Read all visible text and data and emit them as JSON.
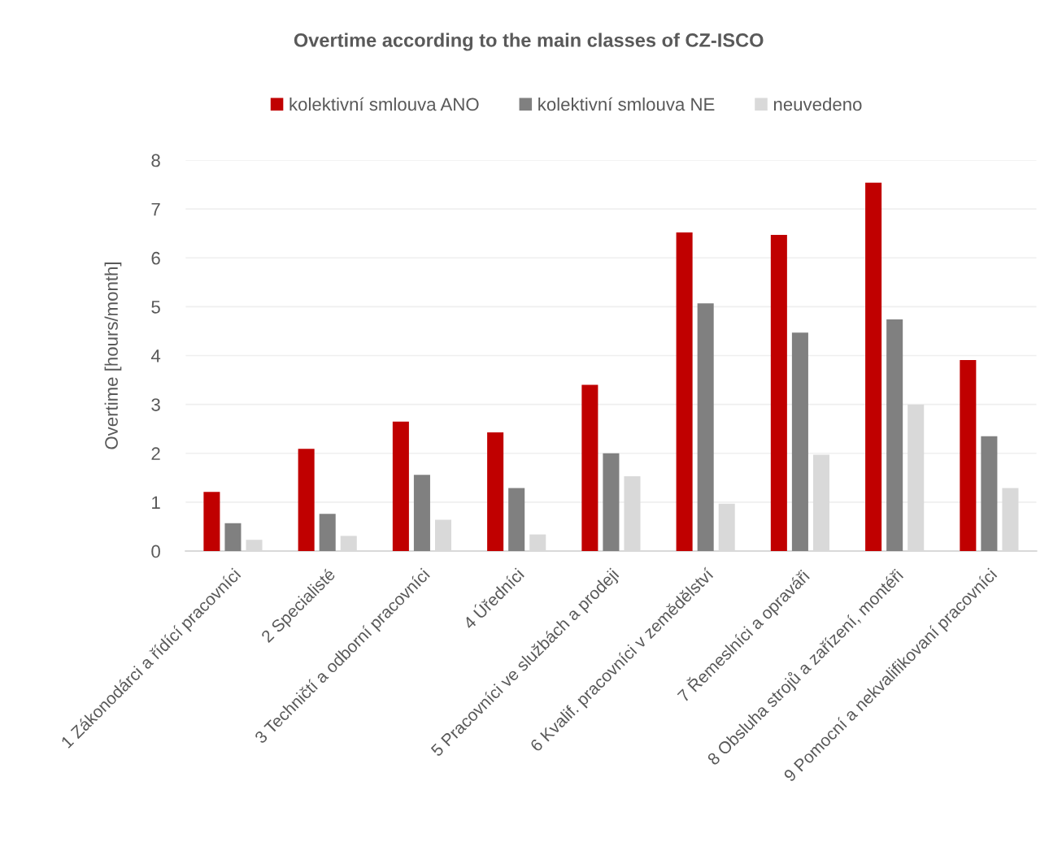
{
  "chart_data": {
    "type": "bar",
    "title": "Overtime according to the main classes of CZ-ISCO",
    "ylabel": "Overtime [hours/month]",
    "categories": [
      "1 Zákonodárci a řídící pracovníci",
      "2 Specialisté",
      "3 Techničtí a odborní pracovníci",
      "4 Úředníci",
      "5 Pracovníci ve službách a prodeji",
      "6 Kvalif. pracovníci v zemědělství",
      "7 Řemeslníci a opraváři",
      "8 Obsluha strojů a zařízení, montéři",
      "9 Pomocní a nekvalifikovaní pracovníci"
    ],
    "series": [
      {
        "name": "kolektivní smlouva ANO",
        "color": "#c00000",
        "values": [
          1.21,
          2.09,
          2.65,
          2.43,
          3.4,
          6.52,
          6.47,
          7.54,
          3.91
        ]
      },
      {
        "name": "kolektivní smlouva NE",
        "color": "#808080",
        "values": [
          0.57,
          0.76,
          1.56,
          1.29,
          2.0,
          5.07,
          4.47,
          4.74,
          2.35
        ]
      },
      {
        "name": "neuvedeno",
        "color": "#d9d9d9",
        "values": [
          0.23,
          0.31,
          0.64,
          0.34,
          1.53,
          0.97,
          1.97,
          3.0,
          1.29
        ]
      }
    ],
    "ylim": [
      0,
      8
    ],
    "yticks": [
      0,
      1,
      2,
      3,
      4,
      5,
      6,
      7,
      8
    ],
    "grid": "y",
    "legend": "top"
  }
}
